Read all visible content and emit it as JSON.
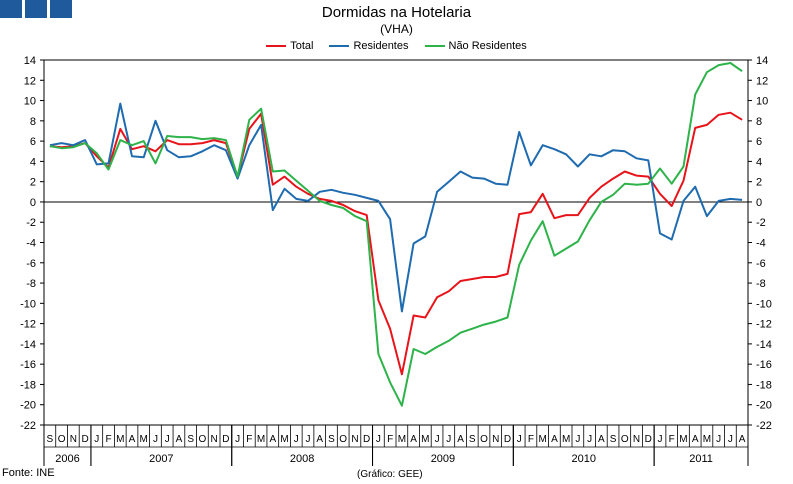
{
  "header": {
    "title": "Dormidas na Hotelaria",
    "subtitle": "(VHA)"
  },
  "footer": {
    "source": "Fonte: INE",
    "credit": "(Gráfico: GEE)"
  },
  "logo_icon": "ine-logo-squares",
  "chart_data": {
    "type": "line",
    "title": "Dormidas na Hotelaria",
    "subtitle": "(VHA)",
    "ylim": [
      -22,
      14
    ],
    "yticks": [
      -22,
      -20,
      -18,
      -16,
      -14,
      -12,
      -10,
      -8,
      -6,
      -4,
      -2,
      0,
      2,
      4,
      6,
      8,
      10,
      12,
      14
    ],
    "grid": false,
    "legend_position": "top",
    "dual_y_axis": true,
    "months": [
      "S",
      "O",
      "N",
      "D",
      "J",
      "F",
      "M",
      "A",
      "M",
      "J",
      "J",
      "A",
      "S",
      "O",
      "N",
      "D",
      "J",
      "F",
      "M",
      "A",
      "M",
      "J",
      "J",
      "A",
      "S",
      "O",
      "N",
      "D",
      "J",
      "F",
      "M",
      "A",
      "M",
      "J",
      "J",
      "A",
      "S",
      "O",
      "N",
      "D",
      "J",
      "F",
      "M",
      "A",
      "M",
      "J",
      "J",
      "A",
      "S",
      "O",
      "N",
      "D",
      "J",
      "F",
      "M",
      "A",
      "M",
      "J",
      "J",
      "A"
    ],
    "years": [
      {
        "label": "2006",
        "start": 0,
        "count": 4
      },
      {
        "label": "2007",
        "start": 4,
        "count": 12
      },
      {
        "label": "2008",
        "start": 16,
        "count": 12
      },
      {
        "label": "2009",
        "start": 28,
        "count": 12
      },
      {
        "label": "2010",
        "start": 40,
        "count": 12
      },
      {
        "label": "2011",
        "start": 52,
        "count": 8
      }
    ],
    "series": [
      {
        "name": "Total",
        "color": "#e8141b",
        "values": [
          5.5,
          5.4,
          5.5,
          5.8,
          4.5,
          3.4,
          7.2,
          5.2,
          5.5,
          5.0,
          6.1,
          5.7,
          5.7,
          5.8,
          6.1,
          5.8,
          2.5,
          7.2,
          8.7,
          1.7,
          2.5,
          1.5,
          0.8,
          0.3,
          0.1,
          -0.3,
          -0.9,
          -1.3,
          -9.7,
          -12.5,
          -17.0,
          -11.2,
          -11.4,
          -9.4,
          -8.8,
          -7.8,
          -7.6,
          -7.4,
          -7.4,
          -7.1,
          -1.2,
          -1.0,
          0.8,
          -1.6,
          -1.3,
          -1.3,
          0.4,
          1.5,
          2.3,
          3.0,
          2.6,
          2.5,
          0.8,
          -0.4,
          2.1,
          7.3,
          7.6,
          8.6,
          8.8,
          8.1
        ]
      },
      {
        "name": "Residentes",
        "color": "#1f6bb0",
        "values": [
          5.6,
          5.8,
          5.6,
          6.1,
          3.7,
          3.8,
          9.7,
          4.5,
          4.4,
          8.0,
          5.1,
          4.4,
          4.5,
          5.0,
          5.6,
          5.1,
          2.3,
          5.6,
          7.6,
          -0.8,
          1.3,
          0.3,
          0.1,
          1.0,
          1.2,
          0.9,
          0.7,
          0.4,
          0.1,
          -1.7,
          -10.8,
          -4.1,
          -3.4,
          1.0,
          2.0,
          3.0,
          2.4,
          2.3,
          1.8,
          1.7,
          6.9,
          3.6,
          5.6,
          5.2,
          4.7,
          3.5,
          4.7,
          4.5,
          5.1,
          5.0,
          4.3,
          4.1,
          -3.1,
          -3.7,
          0.1,
          1.5,
          -1.4,
          0.1,
          0.3,
          0.2
        ]
      },
      {
        "name": "Não Residentes",
        "color": "#2db34a",
        "values": [
          5.5,
          5.3,
          5.4,
          5.8,
          4.8,
          3.2,
          6.1,
          5.6,
          6.0,
          3.8,
          6.5,
          6.4,
          6.4,
          6.2,
          6.3,
          6.1,
          2.5,
          8.1,
          9.2,
          3.0,
          3.1,
          2.1,
          1.1,
          0.1,
          -0.3,
          -0.6,
          -1.4,
          -1.9,
          -15.0,
          -17.8,
          -20.1,
          -14.5,
          -15.0,
          -14.3,
          -13.7,
          -12.9,
          -12.5,
          -12.1,
          -11.8,
          -11.4,
          -6.2,
          -3.8,
          -1.9,
          -5.3,
          -4.6,
          -3.9,
          -1.8,
          0.0,
          0.7,
          1.8,
          1.7,
          1.8,
          3.3,
          1.8,
          3.5,
          10.6,
          12.8,
          13.5,
          13.7,
          12.9
        ]
      }
    ]
  }
}
